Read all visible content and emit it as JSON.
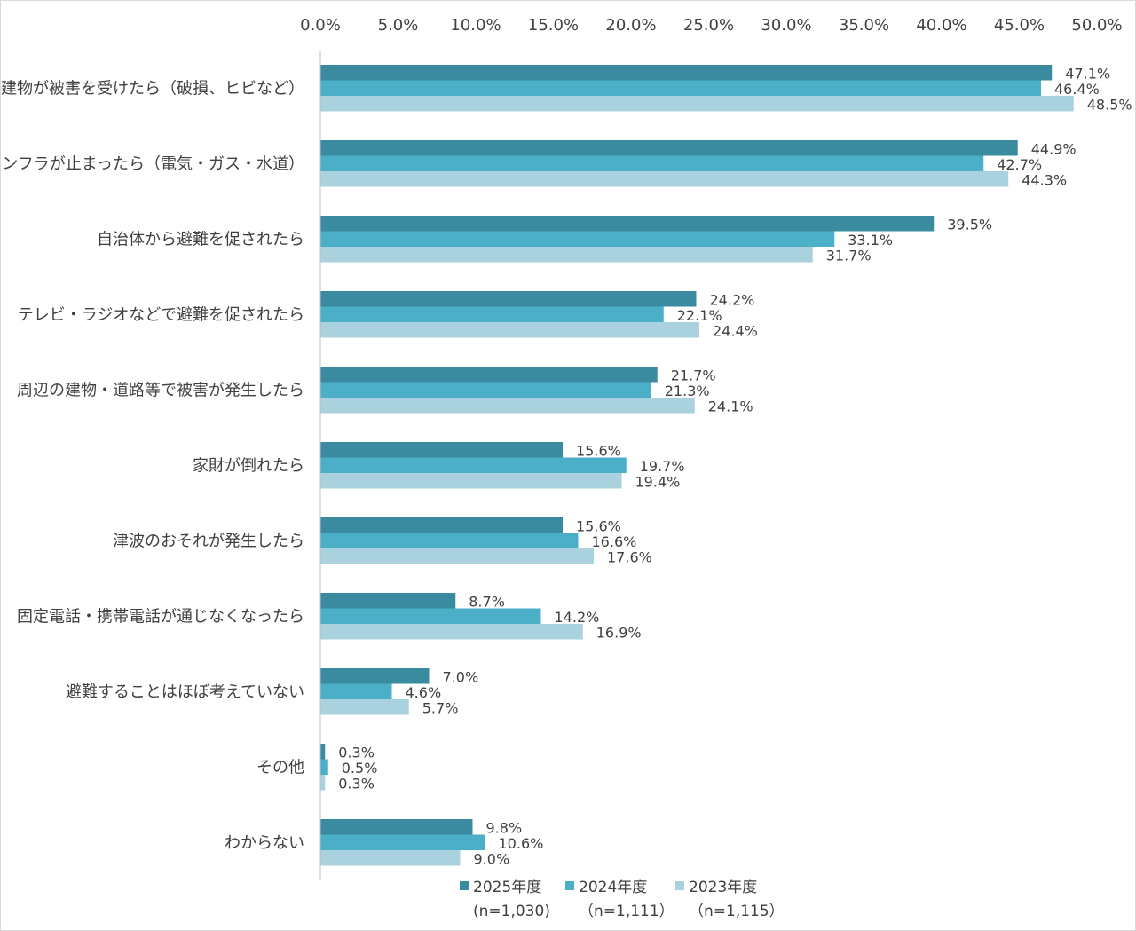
{
  "chart_data": {
    "type": "bar",
    "orientation": "horizontal",
    "categories": [
      "建物が被害を受けたら（破損、ヒビなど）",
      "インフラが止まったら（電気・ガス・水道）",
      "自治体から避難を促されたら",
      "テレビ・ラジオなどで避難を促されたら",
      "周辺の建物・道路等で被害が発生したら",
      "家財が倒れたら",
      "津波のおそれが発生したら",
      "固定電話・携帯電話が通じなくなったら",
      "避難することはほぼ考えていない",
      "その他",
      "わからない"
    ],
    "series": [
      {
        "name": "2025年度",
        "sample": "(n=1,030)",
        "color": "#3a8ba0",
        "values": [
          47.1,
          44.9,
          39.5,
          24.2,
          21.7,
          15.6,
          15.6,
          8.7,
          7.0,
          0.3,
          9.8
        ],
        "labels": [
          "47.1%",
          "44.9%",
          "39.5%",
          "24.2%",
          "21.7%",
          "15.6%",
          "15.6%",
          "8.7%",
          "7.0%",
          "0.3%",
          "9.8%"
        ]
      },
      {
        "name": "2024年度",
        "sample": "（n=1,111）",
        "color": "#4bafc8",
        "values": [
          46.4,
          42.7,
          33.1,
          22.1,
          21.3,
          19.7,
          16.6,
          14.2,
          4.6,
          0.5,
          10.6
        ],
        "labels": [
          "46.4%",
          "42.7%",
          "33.1%",
          "22.1%",
          "21.3%",
          "19.7%",
          "16.6%",
          "14.2%",
          "4.6%",
          "0.5%",
          "10.6%"
        ]
      },
      {
        "name": "2023年度",
        "sample": "（n=1,115）",
        "color": "#a9d2de",
        "values": [
          48.5,
          44.3,
          31.7,
          24.4,
          24.1,
          19.4,
          17.6,
          16.9,
          5.7,
          0.3,
          9.0
        ],
        "labels": [
          "48.5%",
          "44.3%",
          "31.7%",
          "24.4%",
          "24.1%",
          "19.4%",
          "17.6%",
          "16.9%",
          "5.7%",
          "0.3%",
          "9.0%"
        ]
      }
    ],
    "xlim": [
      0,
      50
    ],
    "xticks": [
      "0.0%",
      "5.0%",
      "10.0%",
      "15.0%",
      "20.0%",
      "25.0%",
      "30.0%",
      "35.0%",
      "40.0%",
      "45.0%",
      "50.0%"
    ],
    "axis_position": "top",
    "grid": false,
    "legend_position": "bottom"
  }
}
